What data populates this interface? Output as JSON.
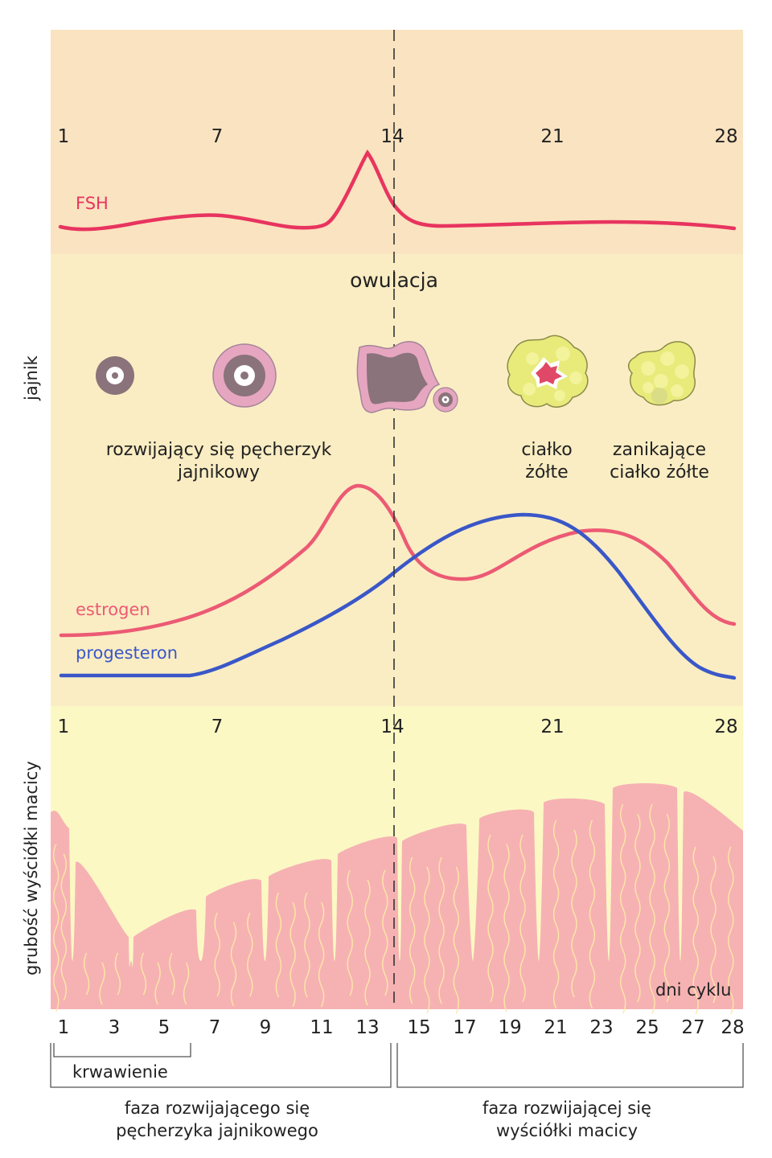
{
  "days_top": [
    "1",
    "7",
    "14",
    "21",
    "28"
  ],
  "days_bottom": [
    "1",
    "3",
    "5",
    "7",
    "9",
    "11",
    "13",
    "15",
    "17",
    "19",
    "21",
    "23",
    "25",
    "27",
    "28"
  ],
  "hormones": {
    "fsh": "FSH",
    "estrogen": "estrogen",
    "progesteron": "progesteron"
  },
  "ovary": {
    "side_label": "jajnik",
    "ovulation": "owulacja",
    "follicle_line1": "rozwijający się pęcherzyk",
    "follicle_line2": "jajnikowy",
    "corpus_line1": "ciałko",
    "corpus_line2": "żółte",
    "degen_line1": "zanikające",
    "degen_line2": "ciałko żółte"
  },
  "endometrium": {
    "side_label": "grubość wyściółki macicy",
    "axis_caption": "dni cyklu"
  },
  "brackets": {
    "bleeding": "krwawienie",
    "phase1_line1": "faza rozwijającego się",
    "phase1_line2": "pęcherzyka jajnikowego",
    "phase2_line1": "faza rozwijającej się",
    "phase2_line2": "wyściółki macicy"
  },
  "colors": {
    "fsh_bg": "#fae3c0",
    "ovary_bg": "#faedc3",
    "uterus_bg": "#fbf8c4",
    "fsh_line": "#e8345f",
    "estrogen_line": "#ec5a74",
    "progesteron_line": "#3a57c8",
    "tissue": "#f6b2b3",
    "vessel": "#fde7a7"
  }
}
